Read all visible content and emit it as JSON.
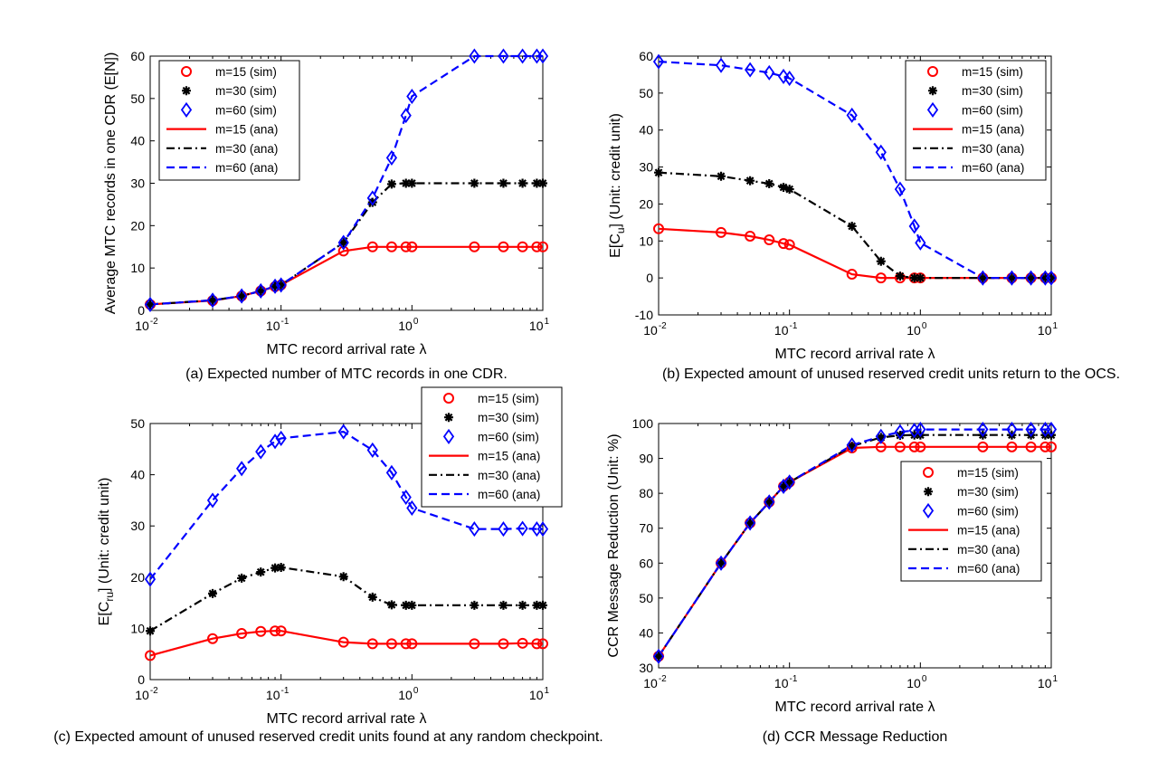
{
  "legend_entries": [
    {
      "label": "m=15 (sim)",
      "color": "#ff0000",
      "kind": "sim",
      "marker": "circle"
    },
    {
      "label": "m=30 (sim)",
      "color": "#000000",
      "kind": "sim",
      "marker": "asterisk"
    },
    {
      "label": "m=60 (sim)",
      "color": "#0000ff",
      "kind": "sim",
      "marker": "diamond"
    },
    {
      "label": "m=15 (ana)",
      "color": "#ff0000",
      "kind": "ana",
      "dash": "solid"
    },
    {
      "label": "m=30 (ana)",
      "color": "#000000",
      "kind": "ana",
      "dash": "dashdot"
    },
    {
      "label": "m=60 (ana)",
      "color": "#0000ff",
      "kind": "ana",
      "dash": "dashed"
    }
  ],
  "chart_data": [
    {
      "id": "a",
      "type": "line",
      "caption": "(a) Expected number of MTC records in one CDR.",
      "xlabel": "MTC record arrival rate λ",
      "ylabel": "Average MTC records in one CDR (E[N])",
      "xscale": "log",
      "xlim": [
        0.01,
        10
      ],
      "ylim": [
        0,
        60
      ],
      "yticks": [
        0,
        10,
        20,
        30,
        40,
        50,
        60
      ],
      "grid": false,
      "legend_position": "top-left",
      "x": [
        0.01,
        0.03,
        0.05,
        0.07,
        0.09,
        0.1,
        0.3,
        0.5,
        0.7,
        0.9,
        1,
        3,
        5,
        7,
        9,
        10
      ],
      "series": [
        {
          "name": "m=15",
          "values": [
            1.4,
            2.3,
            3.4,
            4.6,
            5.6,
            6.0,
            14.0,
            15.0,
            15.0,
            15.0,
            15.0,
            15.0,
            15.0,
            15.0,
            15.0,
            15.0
          ]
        },
        {
          "name": "m=30",
          "values": [
            1.4,
            2.4,
            3.4,
            4.6,
            5.7,
            6.0,
            16.0,
            25.5,
            29.8,
            30.0,
            30.0,
            30.0,
            30.0,
            30.0,
            30.0,
            30.0
          ]
        },
        {
          "name": "m=60",
          "values": [
            1.4,
            2.4,
            3.4,
            4.6,
            5.7,
            6.0,
            16.0,
            26.5,
            36.0,
            46.0,
            50.5,
            60.0,
            60.0,
            60.0,
            60.0,
            60.0
          ]
        }
      ]
    },
    {
      "id": "b",
      "type": "line",
      "caption": "(b) Expected amount of unused reserved credit units return to the OCS.",
      "xlabel": "MTC record arrival rate λ",
      "ylabel": "E[C",
      "ylabel_sub": "u",
      "ylabel_tail": "] (Unit: credit unit)",
      "xscale": "log",
      "xlim": [
        0.01,
        10
      ],
      "ylim": [
        -10,
        60
      ],
      "yticks": [
        -10,
        0,
        10,
        20,
        30,
        40,
        50,
        60
      ],
      "grid": false,
      "legend_position": "top-right",
      "x": [
        0.01,
        0.03,
        0.05,
        0.07,
        0.09,
        0.1,
        0.3,
        0.5,
        0.7,
        0.9,
        1,
        3,
        5,
        7,
        9,
        10
      ],
      "series": [
        {
          "name": "m=15",
          "values": [
            13.3,
            12.3,
            11.3,
            10.3,
            9.3,
            9.0,
            1.0,
            0.0,
            0.0,
            0.0,
            0.0,
            0.0,
            0.0,
            0.0,
            0.0,
            0.0
          ]
        },
        {
          "name": "m=30",
          "values": [
            28.5,
            27.5,
            26.3,
            25.5,
            24.5,
            24.0,
            14.0,
            4.5,
            0.5,
            0.0,
            0.0,
            0.0,
            0.0,
            0.0,
            0.0,
            0.0
          ]
        },
        {
          "name": "m=60",
          "values": [
            58.5,
            57.5,
            56.3,
            55.5,
            54.5,
            54.0,
            44.0,
            34.0,
            24.0,
            14.0,
            9.5,
            0.0,
            0.0,
            0.0,
            0.0,
            0.0
          ]
        }
      ]
    },
    {
      "id": "c",
      "type": "line",
      "caption": "(c) Expected amount of unused reserved credit units found at any random checkpoint.",
      "xlabel": "MTC record arrival rate λ",
      "ylabel": "E[C",
      "ylabel_sub": "ru",
      "ylabel_tail": "] (Unit: credit unit)",
      "xscale": "log",
      "xlim": [
        0.01,
        10
      ],
      "ylim": [
        0,
        50
      ],
      "yticks": [
        0,
        10,
        20,
        30,
        40,
        50
      ],
      "grid": false,
      "legend_position": "top-right",
      "x": [
        0.01,
        0.03,
        0.05,
        0.07,
        0.09,
        0.1,
        0.3,
        0.5,
        0.7,
        0.9,
        1,
        3,
        5,
        7,
        9,
        10
      ],
      "series": [
        {
          "name": "m=15",
          "values": [
            4.7,
            8.0,
            9.0,
            9.4,
            9.5,
            9.5,
            7.3,
            7.0,
            7.0,
            7.0,
            7.0,
            7.0,
            7.0,
            7.1,
            7.0,
            7.0
          ]
        },
        {
          "name": "m=30",
          "values": [
            9.5,
            16.8,
            19.8,
            21.0,
            21.8,
            21.9,
            20.1,
            16.1,
            14.6,
            14.5,
            14.5,
            14.5,
            14.5,
            14.5,
            14.5,
            14.5
          ]
        },
        {
          "name": "m=60",
          "values": [
            19.6,
            35.0,
            41.2,
            44.5,
            46.5,
            47.1,
            48.4,
            44.8,
            40.4,
            35.6,
            33.5,
            29.4,
            29.4,
            29.5,
            29.4,
            29.4
          ]
        }
      ]
    },
    {
      "id": "d",
      "type": "line",
      "caption": "(d) CCR Message Reduction",
      "xlabel": "MTC record arrival rate λ",
      "ylabel": "CCR Message Reduction (Unit: %)",
      "xscale": "log",
      "xlim": [
        0.01,
        10
      ],
      "ylim": [
        30,
        100
      ],
      "yticks": [
        30,
        40,
        50,
        60,
        70,
        80,
        90,
        100
      ],
      "grid": false,
      "legend_position": "right",
      "x": [
        0.01,
        0.03,
        0.05,
        0.07,
        0.09,
        0.1,
        0.3,
        0.5,
        0.7,
        0.9,
        1,
        3,
        5,
        7,
        9,
        10
      ],
      "series": [
        {
          "name": "m=15",
          "values": [
            33.3,
            60.0,
            71.5,
            77.5,
            82.0,
            83.2,
            93.0,
            93.3,
            93.3,
            93.3,
            93.3,
            93.3,
            93.3,
            93.3,
            93.3,
            93.3
          ]
        },
        {
          "name": "m=30",
          "values": [
            33.3,
            60.0,
            71.5,
            77.5,
            82.0,
            83.2,
            93.5,
            96.0,
            96.6,
            96.7,
            96.7,
            96.7,
            96.7,
            96.7,
            96.7,
            96.7
          ]
        },
        {
          "name": "m=60",
          "values": [
            33.3,
            60.0,
            71.5,
            77.5,
            82.0,
            83.2,
            93.8,
            96.3,
            97.6,
            98.0,
            98.3,
            98.3,
            98.3,
            98.3,
            98.3,
            98.3
          ]
        }
      ]
    }
  ]
}
